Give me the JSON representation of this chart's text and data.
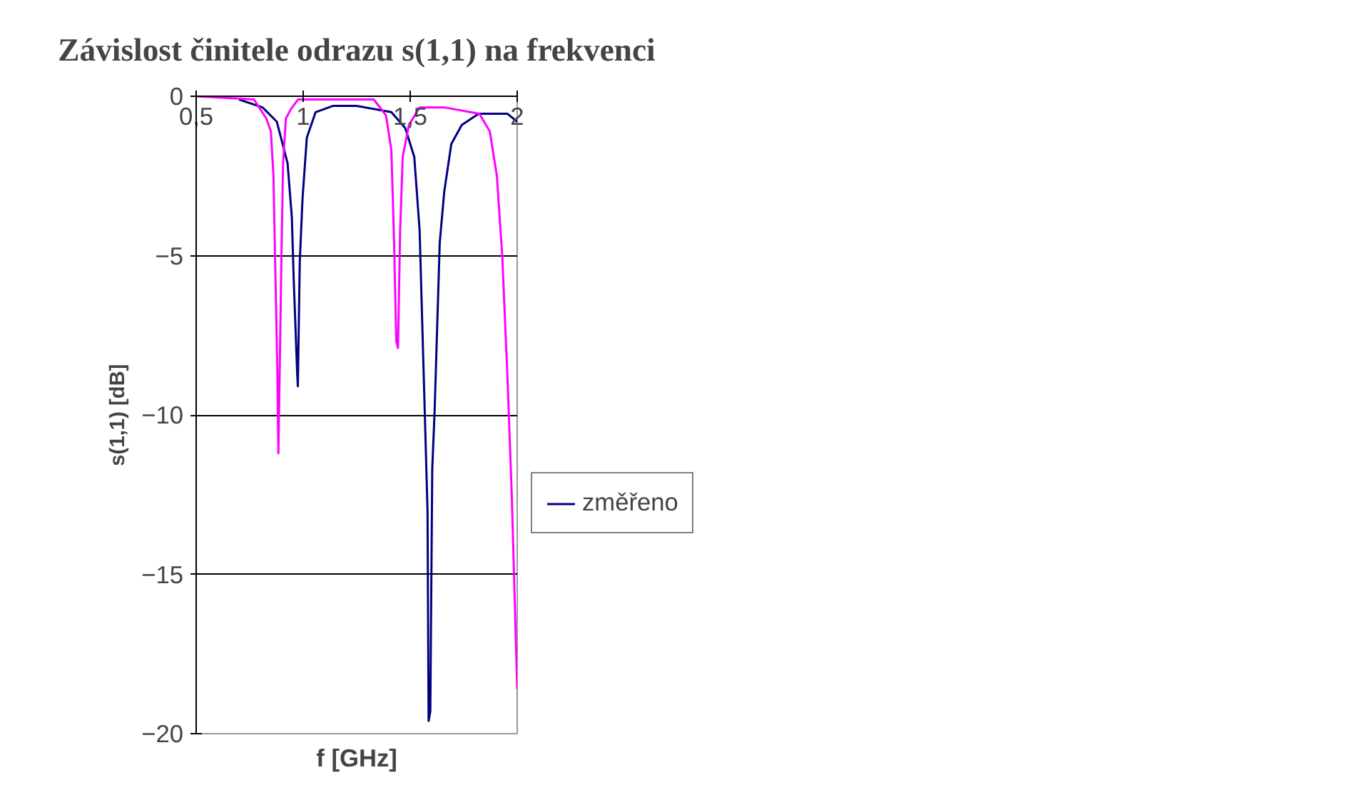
{
  "chart_data": {
    "type": "line",
    "title": "Závislost činitele odrazu s(1,1) na frekvenci",
    "xlabel": "f [GHz]",
    "ylabel": "s(1,1) [dB]",
    "xlim": [
      0.5,
      2
    ],
    "xticks": [
      {
        "value": 0.5,
        "label": "0,5"
      },
      1,
      {
        "value": 1.5,
        "label": "1,5"
      },
      2
    ],
    "ylim": [
      -20,
      0
    ],
    "yticks": [
      -20,
      -15,
      -10,
      -5,
      0
    ],
    "grid": "y",
    "legend": "right",
    "marker": "none",
    "line_style": "solid",
    "series": [
      {
        "name": "změřeno",
        "color": "#000080",
        "x": [
          0.7,
          0.81,
          0.877,
          0.927,
          0.947,
          0.956,
          0.972,
          0.975,
          0.984,
          0.997,
          1.017,
          1.058,
          1.14,
          1.248,
          1.412,
          1.477,
          1.519,
          1.544,
          1.568,
          1.581,
          1.586,
          1.594,
          1.603,
          1.614,
          1.638,
          1.659,
          1.692,
          1.741,
          1.82,
          1.955,
          2.0
        ],
        "values": [
          -0.1,
          -0.35,
          -0.8,
          -2.1,
          -3.8,
          -5.8,
          -8.7,
          -9.1,
          -5.2,
          -3.2,
          -1.3,
          -0.5,
          -0.3,
          -0.3,
          -0.5,
          -1.0,
          -1.9,
          -4.2,
          -9.9,
          -13.0,
          -19.6,
          -19.3,
          -11.7,
          -9.9,
          -4.6,
          -3.0,
          -1.5,
          -0.9,
          -0.55,
          -0.55,
          -0.8
        ]
      },
      {
        "color": "#ff00ff",
        "x": [
          0.5,
          0.77,
          0.828,
          0.849,
          0.861,
          0.869,
          0.879,
          0.884,
          0.89,
          0.898,
          0.906,
          0.919,
          0.943,
          0.976,
          1.33,
          1.387,
          1.412,
          1.424,
          1.435,
          1.443,
          1.453,
          1.465,
          1.494,
          1.544,
          1.659,
          1.823,
          1.872,
          1.905,
          1.93,
          1.955,
          1.975,
          2.0
        ],
        "values": [
          0,
          -0.1,
          -0.7,
          -1.1,
          -2.5,
          -5.2,
          -8.5,
          -11.2,
          -8.7,
          -5.2,
          -2.1,
          -0.7,
          -0.4,
          -0.1,
          -0.1,
          -0.6,
          -1.7,
          -4.4,
          -7.7,
          -7.9,
          -4.2,
          -1.9,
          -0.9,
          -0.35,
          -0.35,
          -0.55,
          -1.1,
          -2.5,
          -5.0,
          -8.9,
          -12.6,
          -18.6
        ]
      }
    ]
  }
}
